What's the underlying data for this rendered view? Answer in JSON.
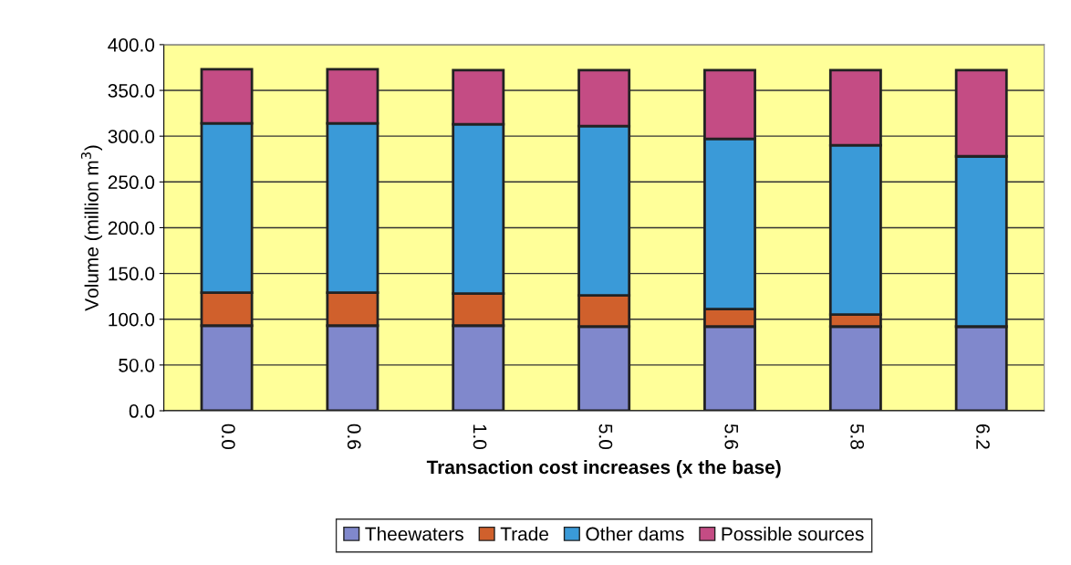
{
  "chart_data": {
    "type": "bar",
    "stacked": true,
    "xlabel": "Transaction cost increases (x the base)",
    "ylabel": "Volume (million m$^{3}$)",
    "categories": [
      "0.0",
      "0.6",
      "1.0",
      "5.0",
      "5.6",
      "5.8",
      "6.2"
    ],
    "series": [
      {
        "name": "Theewaters",
        "color": "#8088cc",
        "values": [
          93,
          93,
          93,
          92,
          92,
          92,
          92
        ]
      },
      {
        "name": "Trade",
        "color": "#d0602c",
        "values": [
          36,
          36,
          35,
          34,
          19,
          13,
          0
        ]
      },
      {
        "name": "Other dams",
        "color": "#3a9ad8",
        "values": [
          185,
          185,
          185,
          185,
          186,
          185,
          186
        ]
      },
      {
        "name": "Possible sources",
        "color": "#c44c84",
        "values": [
          59,
          59,
          59,
          61,
          75,
          82,
          94
        ]
      }
    ],
    "ylim": [
      0,
      400
    ],
    "yticks": [
      {
        "value": 0,
        "label": "0.0"
      },
      {
        "value": 50,
        "label": "50.0"
      },
      {
        "value": 100,
        "label": "100.0"
      },
      {
        "value": 150,
        "label": "150.0"
      },
      {
        "value": 200,
        "label": "200.0"
      },
      {
        "value": 250,
        "label": "250.0"
      },
      {
        "value": 300,
        "label": "300.0"
      },
      {
        "value": 350,
        "label": "350.0"
      },
      {
        "value": 400,
        "label": "400.0"
      }
    ],
    "grid": "y",
    "legend": "bottom"
  }
}
